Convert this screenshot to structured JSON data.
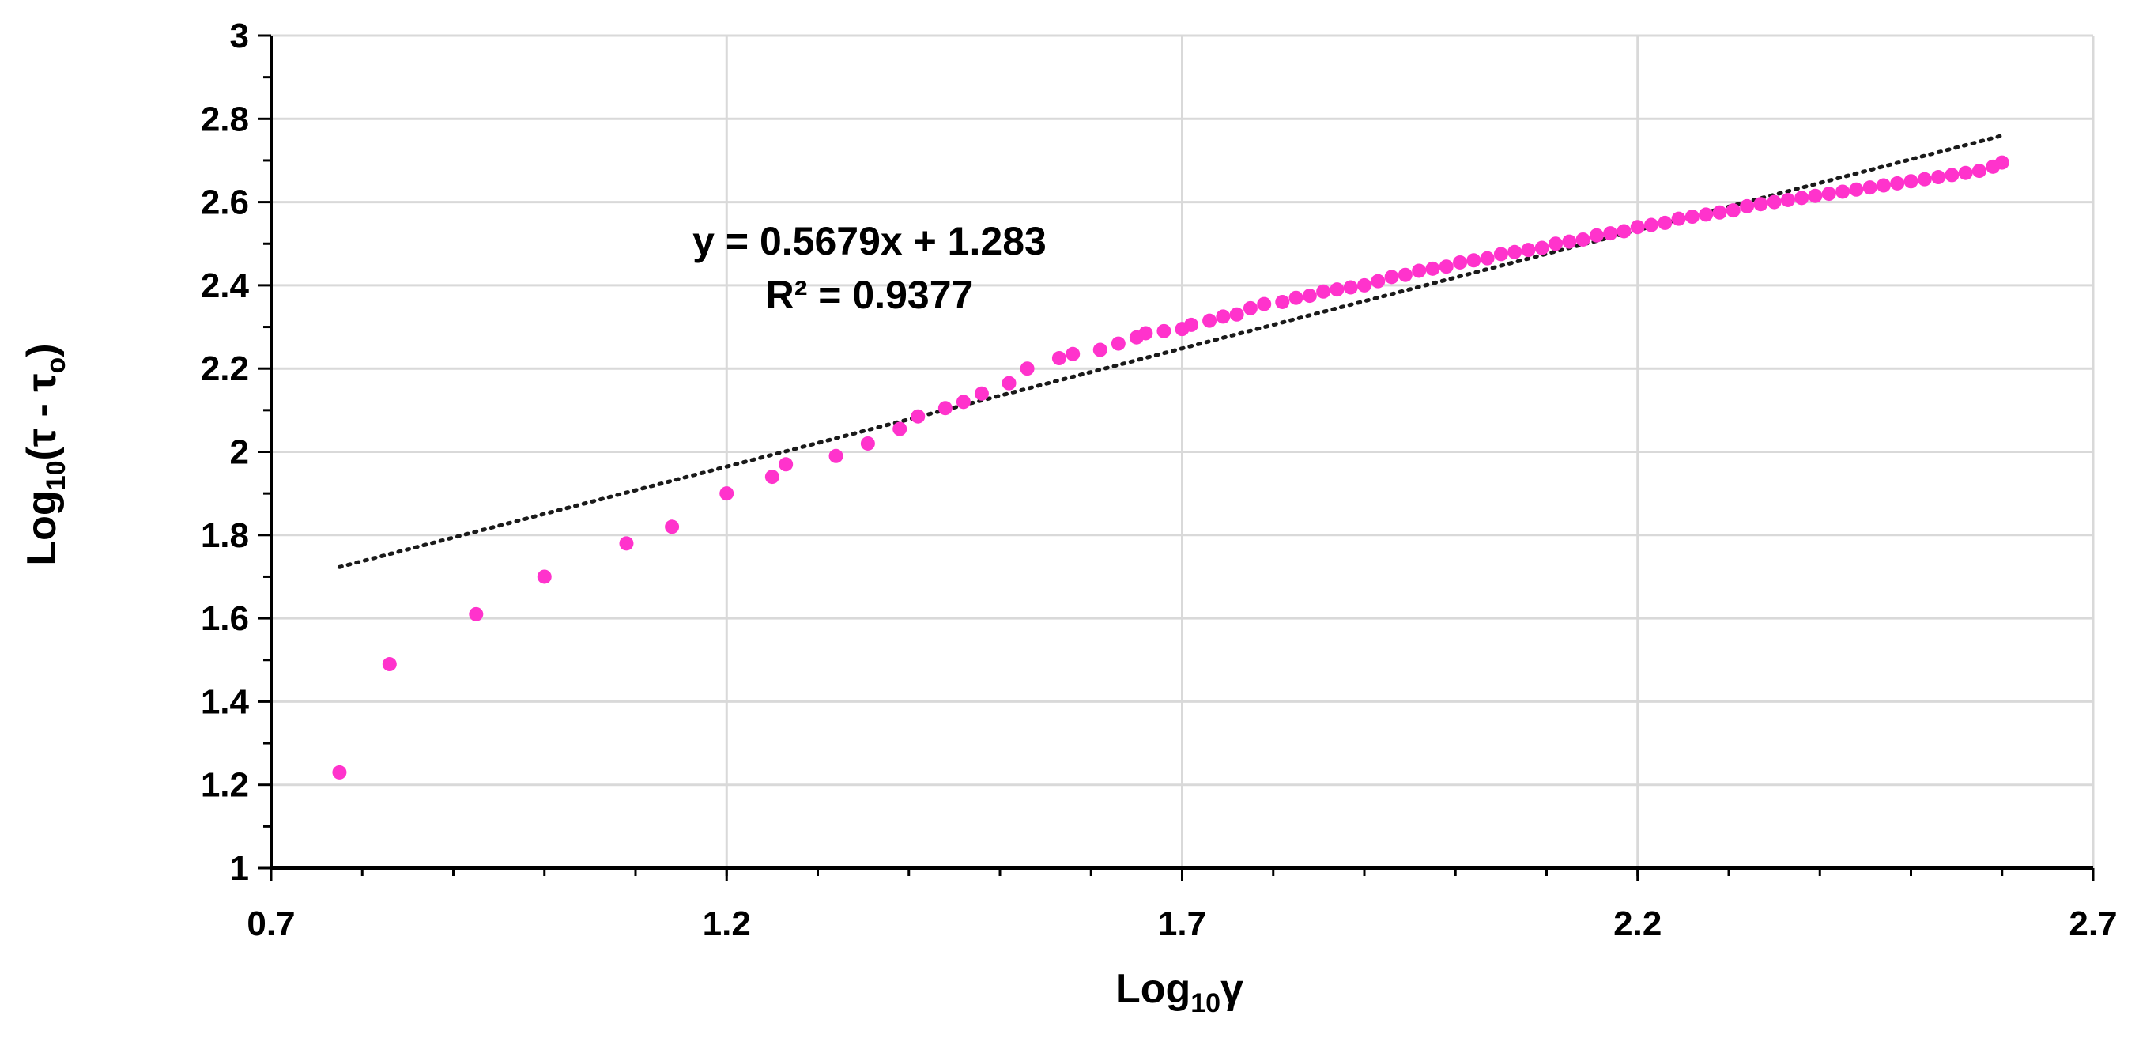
{
  "chart_data": {
    "type": "scatter",
    "title": "",
    "xlabel": {
      "base": "Log",
      "sub": "10",
      "rest": "γ"
    },
    "ylabel": {
      "base": "Log",
      "sub": "10",
      "rest": "(τ - τ",
      "sub2": "o",
      "tail": ")"
    },
    "xlim": [
      0.7,
      2.7
    ],
    "ylim": [
      1,
      3
    ],
    "x_ticks": [
      "0.7",
      "1.2",
      "1.7",
      "2.2",
      "2.7"
    ],
    "y_ticks": [
      "1",
      "1.2",
      "1.4",
      "1.6",
      "1.8",
      "2",
      "2.2",
      "2.4",
      "2.6",
      "2.8",
      "3"
    ],
    "grid": true,
    "marker_color": "#ff33cc",
    "trendline_color": "#1a1a1a",
    "trendline": {
      "type": "linear",
      "slope": 0.5679,
      "intercept": 1.283,
      "x_range": [
        0.775,
        2.6
      ],
      "equation": "y = 0.5679x + 1.283",
      "r2": "R² = 0.9377"
    },
    "series": [
      {
        "points": [
          [
            0.775,
            1.23
          ],
          [
            0.83,
            1.49
          ],
          [
            0.925,
            1.61
          ],
          [
            1.0,
            1.7
          ],
          [
            1.09,
            1.78
          ],
          [
            1.14,
            1.82
          ],
          [
            1.2,
            1.9
          ],
          [
            1.25,
            1.94
          ],
          [
            1.265,
            1.97
          ],
          [
            1.32,
            1.99
          ],
          [
            1.355,
            2.02
          ],
          [
            1.39,
            2.055
          ],
          [
            1.41,
            2.085
          ],
          [
            1.44,
            2.105
          ],
          [
            1.46,
            2.12
          ],
          [
            1.48,
            2.14
          ],
          [
            1.51,
            2.165
          ],
          [
            1.53,
            2.2
          ],
          [
            1.565,
            2.225
          ],
          [
            1.58,
            2.235
          ],
          [
            1.61,
            2.245
          ],
          [
            1.63,
            2.26
          ],
          [
            1.65,
            2.275
          ],
          [
            1.66,
            2.285
          ],
          [
            1.68,
            2.29
          ],
          [
            1.7,
            2.295
          ],
          [
            1.71,
            2.305
          ],
          [
            1.73,
            2.315
          ],
          [
            1.745,
            2.325
          ],
          [
            1.76,
            2.33
          ],
          [
            1.775,
            2.345
          ],
          [
            1.79,
            2.355
          ],
          [
            1.81,
            2.36
          ],
          [
            1.825,
            2.37
          ],
          [
            1.84,
            2.375
          ],
          [
            1.855,
            2.385
          ],
          [
            1.87,
            2.39
          ],
          [
            1.885,
            2.395
          ],
          [
            1.9,
            2.4
          ],
          [
            1.915,
            2.41
          ],
          [
            1.93,
            2.42
          ],
          [
            1.945,
            2.425
          ],
          [
            1.96,
            2.435
          ],
          [
            1.975,
            2.44
          ],
          [
            1.99,
            2.445
          ],
          [
            2.005,
            2.455
          ],
          [
            2.02,
            2.46
          ],
          [
            2.035,
            2.465
          ],
          [
            2.05,
            2.475
          ],
          [
            2.065,
            2.48
          ],
          [
            2.08,
            2.485
          ],
          [
            2.095,
            2.49
          ],
          [
            2.11,
            2.5
          ],
          [
            2.125,
            2.505
          ],
          [
            2.14,
            2.51
          ],
          [
            2.155,
            2.52
          ],
          [
            2.17,
            2.525
          ],
          [
            2.185,
            2.53
          ],
          [
            2.2,
            2.54
          ],
          [
            2.215,
            2.545
          ],
          [
            2.23,
            2.55
          ],
          [
            2.245,
            2.56
          ],
          [
            2.26,
            2.565
          ],
          [
            2.275,
            2.57
          ],
          [
            2.29,
            2.575
          ],
          [
            2.305,
            2.58
          ],
          [
            2.32,
            2.59
          ],
          [
            2.335,
            2.595
          ],
          [
            2.35,
            2.6
          ],
          [
            2.365,
            2.605
          ],
          [
            2.38,
            2.61
          ],
          [
            2.395,
            2.615
          ],
          [
            2.41,
            2.62
          ],
          [
            2.425,
            2.625
          ],
          [
            2.44,
            2.63
          ],
          [
            2.455,
            2.635
          ],
          [
            2.47,
            2.64
          ],
          [
            2.485,
            2.645
          ],
          [
            2.5,
            2.65
          ],
          [
            2.515,
            2.655
          ],
          [
            2.53,
            2.66
          ],
          [
            2.545,
            2.665
          ],
          [
            2.56,
            2.67
          ],
          [
            2.575,
            2.675
          ],
          [
            2.59,
            2.685
          ],
          [
            2.6,
            2.695
          ]
        ]
      }
    ]
  }
}
